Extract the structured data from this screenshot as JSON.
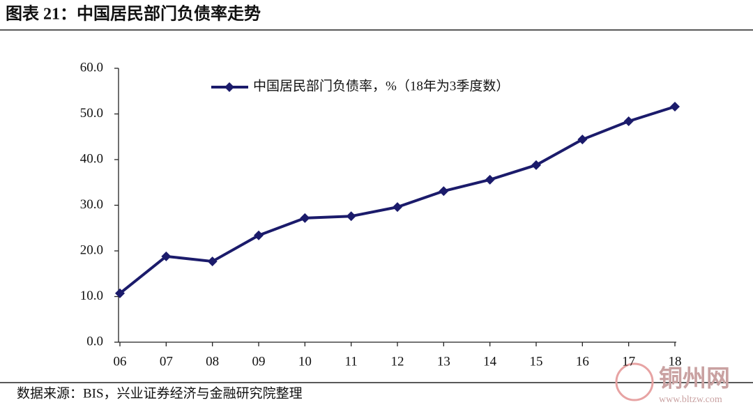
{
  "chart_data": {
    "type": "line",
    "title": "图表 21：中国居民部门负债率走势",
    "source": "数据来源：BIS，兴业证券经济与金融研究院整理",
    "categories": [
      "06",
      "07",
      "08",
      "09",
      "10",
      "11",
      "12",
      "13",
      "14",
      "15",
      "16",
      "17",
      "18"
    ],
    "series": [
      {
        "name": "中国居民部门负债率，%（18年为3季度数）",
        "color": "#1b1b6b",
        "values": [
          10.7,
          18.8,
          17.7,
          23.4,
          27.2,
          27.6,
          29.6,
          33.1,
          35.6,
          38.8,
          44.4,
          48.4,
          51.6
        ]
      }
    ],
    "ylim": [
      0,
      60
    ],
    "yticks": [
      {
        "value": 0,
        "label": "0.0"
      },
      {
        "value": 10,
        "label": "10.0"
      },
      {
        "value": 20,
        "label": "20.0"
      },
      {
        "value": 30,
        "label": "30.0"
      },
      {
        "value": 40,
        "label": "40.0"
      },
      {
        "value": 50,
        "label": "50.0"
      },
      {
        "value": 60,
        "label": "60.0"
      }
    ],
    "grid": false,
    "legend": "top"
  },
  "watermark": {
    "name": "铜州网",
    "url": "www.bltzw.com"
  }
}
